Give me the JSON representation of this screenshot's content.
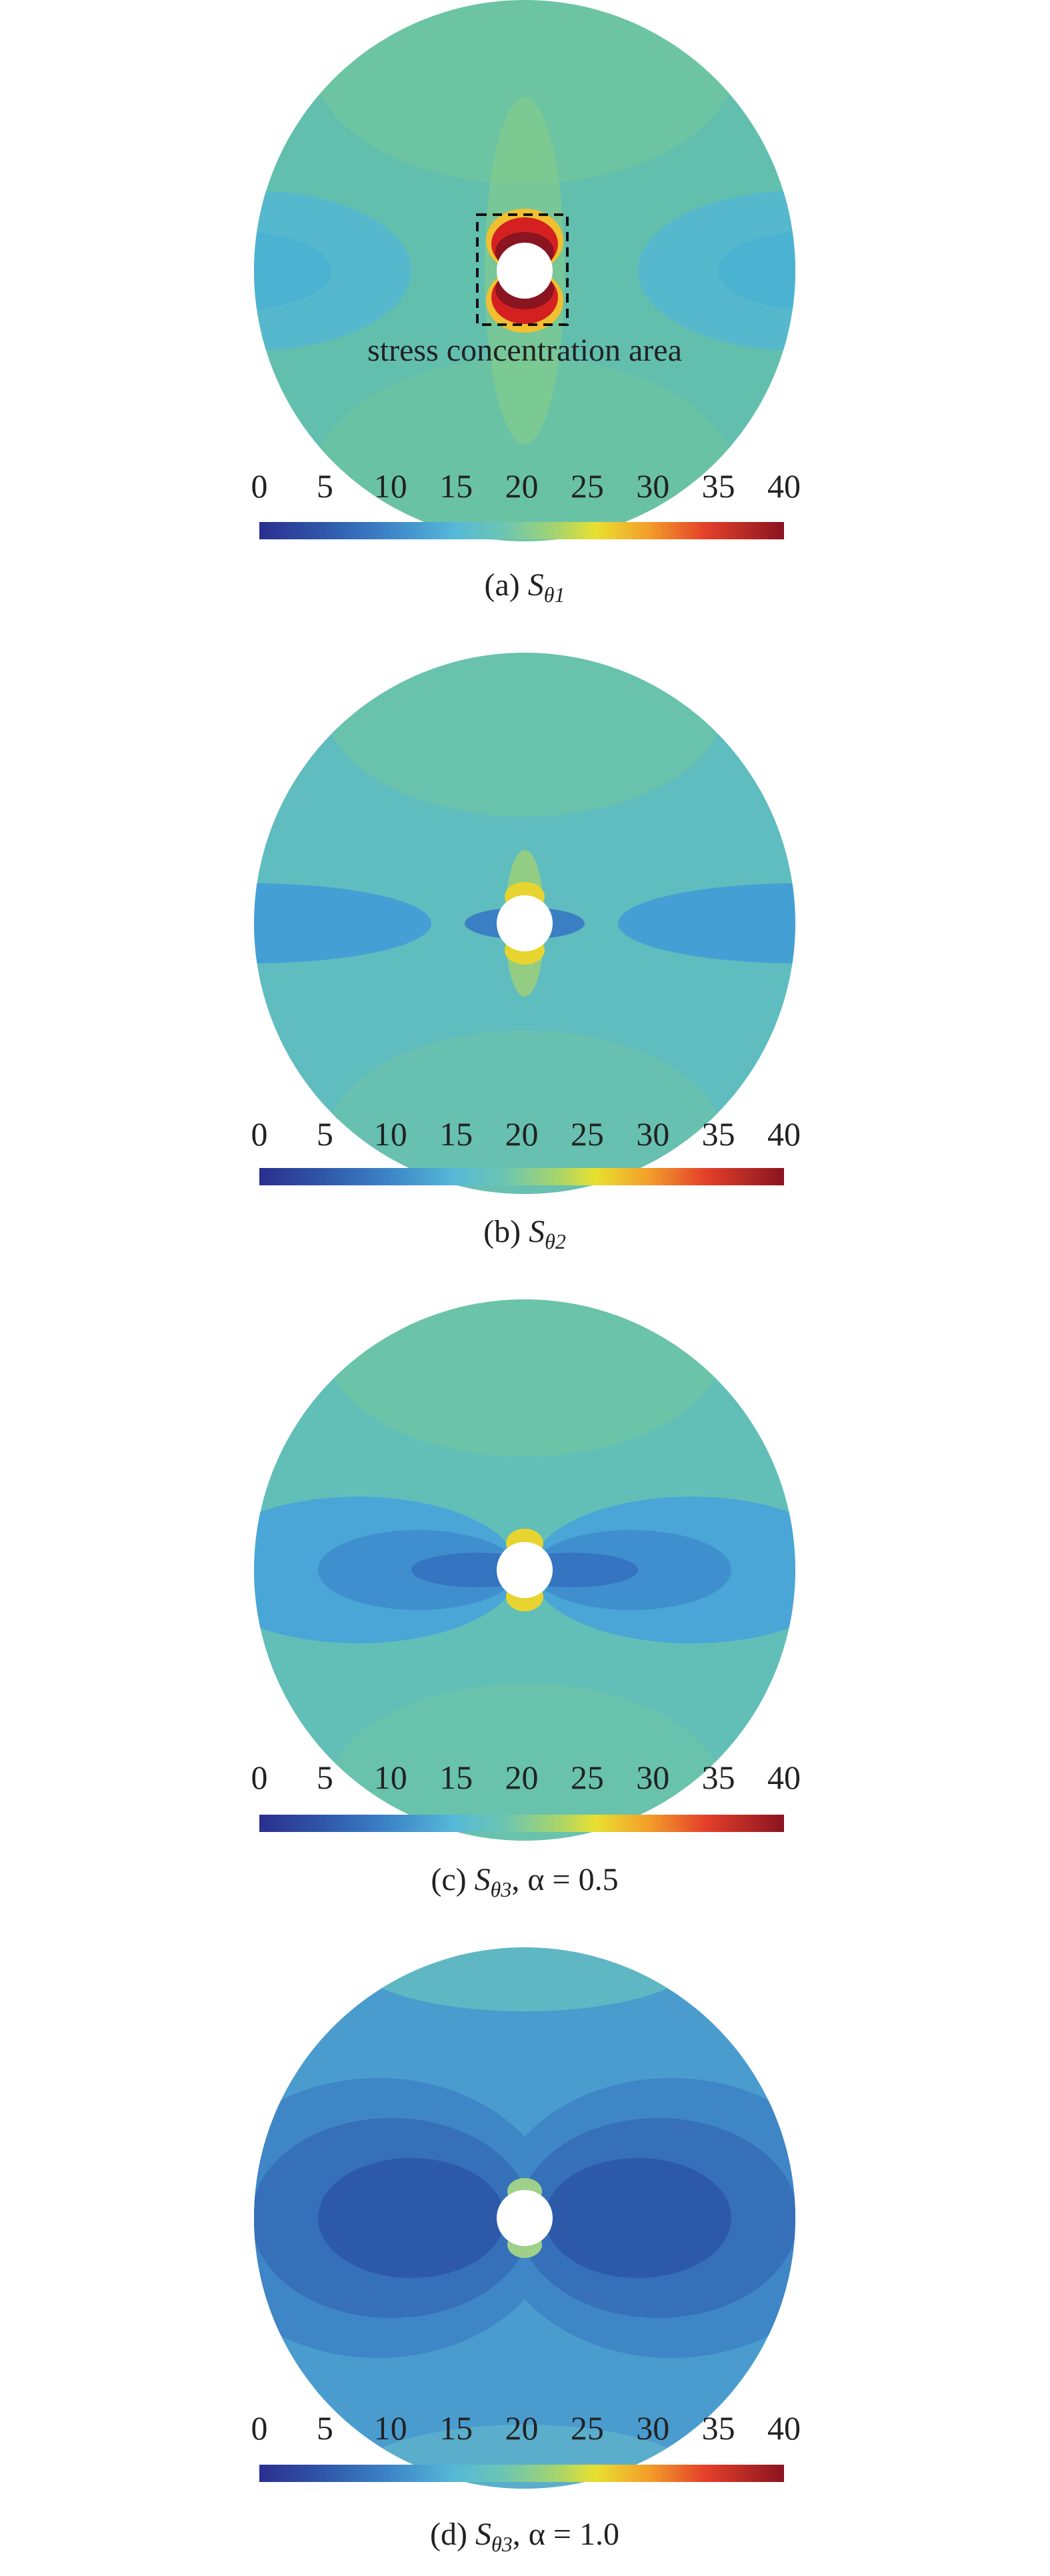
{
  "panels": [
    {
      "colorbar_ticks": [
        0,
        5,
        10,
        15,
        20,
        25,
        30,
        35,
        40
      ],
      "caption": {
        "label": "(a)",
        "symbol": "S",
        "subscript": "θ1"
      },
      "annotation": "stress concentration area"
    },
    {
      "colorbar_ticks": [
        0,
        5,
        10,
        15,
        20,
        25,
        30,
        35,
        40
      ],
      "caption": {
        "label": "(b)",
        "symbol": "S",
        "subscript": "θ2"
      }
    },
    {
      "colorbar_ticks": [
        0,
        5,
        10,
        15,
        20,
        25,
        30,
        35,
        40
      ],
      "caption": {
        "label": "(c)",
        "symbol": "S",
        "subscript": "θ3",
        "suffix": ", α = 0.5"
      }
    },
    {
      "colorbar_ticks": [
        0,
        5,
        10,
        15,
        20,
        25,
        30,
        35,
        40
      ],
      "caption": {
        "label": "(d)",
        "symbol": "S",
        "subscript": "θ3",
        "suffix": ", α = 1.0"
      }
    }
  ]
}
